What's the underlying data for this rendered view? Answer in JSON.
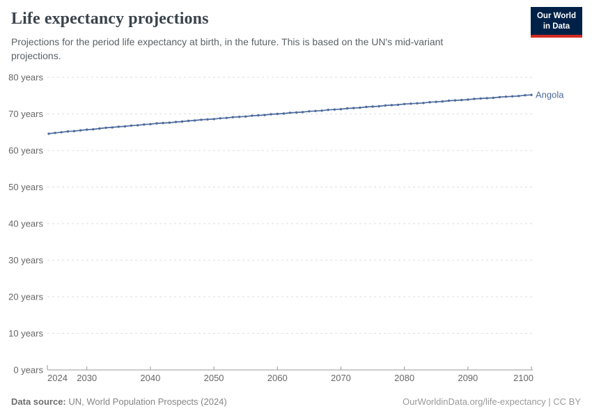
{
  "header": {
    "title": "Life expectancy projections",
    "subtitle": "Projections for the period life expectancy at birth, in the future. This is based on the UN's mid-variant projections.",
    "logo": {
      "line1": "Our World",
      "line2": "in Data",
      "bg_color": "#002147",
      "accent_color": "#d42b20"
    }
  },
  "chart_data": {
    "type": "line",
    "title": "Life expectancy projections",
    "xlabel": "",
    "ylabel": "",
    "xlim": [
      2024,
      2100
    ],
    "ylim": [
      0,
      80
    ],
    "x_ticks": [
      2024,
      2030,
      2040,
      2050,
      2060,
      2070,
      2080,
      2090,
      2100
    ],
    "y_ticks": [
      0,
      10,
      20,
      30,
      40,
      50,
      60,
      70,
      80
    ],
    "y_tick_suffix": " years",
    "grid": "horizontal-dashed",
    "legend_position": "end-of-line-label",
    "series": [
      {
        "name": "Angola",
        "color": "#4c6a9c",
        "x_start": 2024,
        "x_step": 1,
        "values": [
          64.6,
          64.8,
          65.0,
          65.2,
          65.3,
          65.5,
          65.7,
          65.8,
          66.0,
          66.2,
          66.3,
          66.5,
          66.6,
          66.8,
          66.9,
          67.1,
          67.2,
          67.4,
          67.5,
          67.6,
          67.8,
          67.9,
          68.1,
          68.2,
          68.4,
          68.5,
          68.6,
          68.8,
          68.9,
          69.1,
          69.2,
          69.3,
          69.5,
          69.6,
          69.7,
          69.9,
          70.0,
          70.1,
          70.3,
          70.4,
          70.5,
          70.7,
          70.8,
          70.9,
          71.1,
          71.2,
          71.3,
          71.5,
          71.6,
          71.7,
          71.9,
          72.0,
          72.1,
          72.3,
          72.4,
          72.5,
          72.7,
          72.8,
          72.9,
          73.0,
          73.2,
          73.3,
          73.4,
          73.6,
          73.7,
          73.8,
          73.9,
          74.1,
          74.2,
          74.3,
          74.4,
          74.6,
          74.7,
          74.8,
          74.9,
          75.1,
          75.2
        ]
      }
    ]
  },
  "footer": {
    "source_label": "Data source:",
    "source_text": " UN, World Population Prospects (2024)",
    "link_text": "OurWorldinData.org/life-expectancy | CC BY"
  }
}
